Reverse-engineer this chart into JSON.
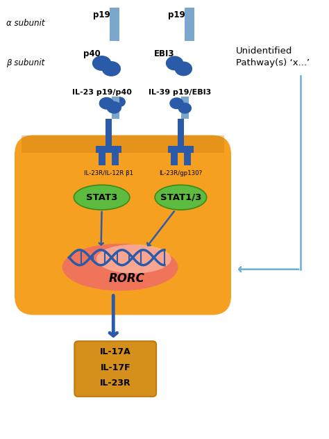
{
  "bg_color": "#ffffff",
  "blue": "#2B5BA8",
  "blue_dark": "#1A4A9C",
  "blue_light_bar": "#7BA7CC",
  "light_blue_arrow": "#6AAED6",
  "green": "#5DBB3F",
  "green_dark": "#3A8A1A",
  "red_oval_inner": "#FFB0A0",
  "red_oval_outer": "#F07860",
  "orange_cell": "#F5A020",
  "orange_cell_top": "#D08018",
  "output_box_color": "#D4901A",
  "alpha_label": "α subunit",
  "beta_label": "β subunit",
  "p19_left": "p19",
  "p19_right": "p19",
  "p40_label": "p40",
  "ebi3_label": "EBI3",
  "il23_label": "IL-23 p19/p40",
  "il39_label": "IL-39 p19/EBI3",
  "receptor1_label": "IL-23R/IL-12R β1",
  "receptor2_label": "IL-23R/gp130?",
  "stat3_label": "STAT3",
  "stat13_label": "STAT1/3",
  "rorc_label": "RORC",
  "output_labels": [
    "IL-17A",
    "IL-17F",
    "IL-23R"
  ],
  "unidentified_line1": "Unidentified",
  "unidentified_line2": "Pathway(s) ‘x...’"
}
